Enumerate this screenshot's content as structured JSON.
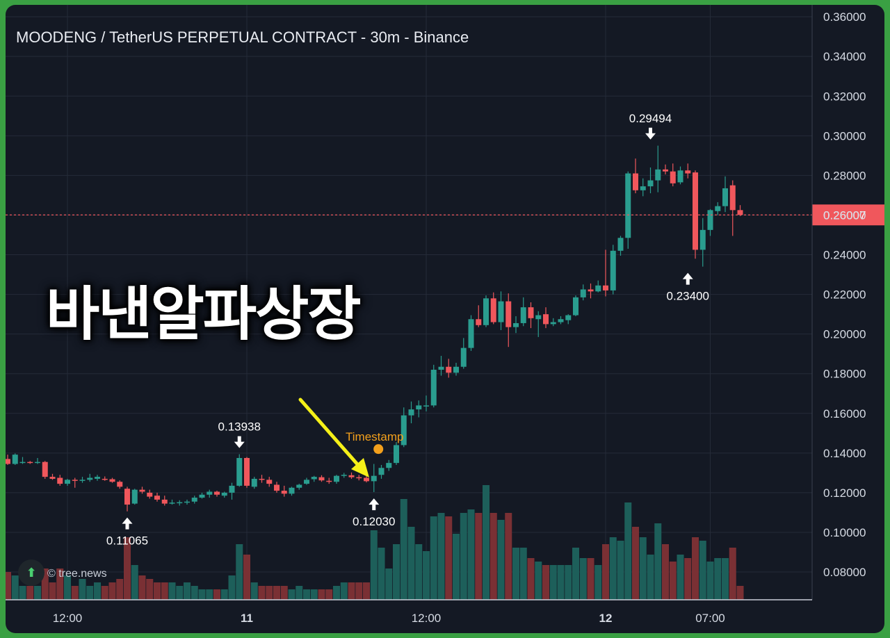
{
  "title": "MOODENG / TetherUS PERPETUAL CONTRACT - 30m - Binance",
  "overlay_text": "바낸알파상장",
  "watermark": "© tree.news",
  "watermark_icon": "double-chevron-up-icon",
  "annotation_label": "Timestamp",
  "colors": {
    "background": "#141924",
    "up": "#2a9d8f",
    "down": "#f0575c",
    "vol_up": "#1d5f5a",
    "vol_down": "#7a3034",
    "grid": "#252b38",
    "arrow": "#f5f018",
    "annotation": "#f3a01c"
  },
  "chart_data": {
    "type": "candlestick",
    "interval": "30m",
    "ylim": [
      0.066,
      0.366
    ],
    "y_ticks": [
      "0.36000",
      "0.34000",
      "0.32000",
      "0.30000",
      "0.28000",
      "0.26000",
      "0.24000",
      "0.22000",
      "0.20000",
      "0.18000",
      "0.16000",
      "0.14000",
      "0.12000",
      "0.10000",
      "0.08000"
    ],
    "x_ticks": [
      {
        "index": 8,
        "label": "12:00",
        "bold": false
      },
      {
        "index": 32,
        "label": "11",
        "bold": true
      },
      {
        "index": 56,
        "label": "12:00",
        "bold": false
      },
      {
        "index": 80,
        "label": "12",
        "bold": true
      },
      {
        "index": 94,
        "label": "07:00",
        "bold": false
      }
    ],
    "last_price": "0.26007",
    "last_price_value": 0.26007,
    "price_annotations": [
      {
        "label": "0.11065",
        "index": 16,
        "price": 0.11065,
        "type": "low"
      },
      {
        "label": "0.13938",
        "index": 31,
        "price": 0.13938,
        "type": "high"
      },
      {
        "label": "0.12030",
        "index": 49,
        "price": 0.1203,
        "type": "low"
      },
      {
        "label": "0.29494",
        "index": 86,
        "price": 0.29494,
        "type": "high"
      },
      {
        "label": "0.23400",
        "index": 91,
        "price": 0.234,
        "type": "low"
      }
    ],
    "timestamp_marker": {
      "index": 49.6,
      "price": 0.142
    },
    "candles": [
      [
        0.137,
        0.1392,
        0.134,
        0.1345,
        8
      ],
      [
        0.1345,
        0.1398,
        0.134,
        0.1392,
        7
      ],
      [
        0.135,
        0.138,
        0.1345,
        0.1355,
        4
      ],
      [
        0.1355,
        0.136,
        0.1345,
        0.135,
        4
      ],
      [
        0.135,
        0.1375,
        0.1345,
        0.1355,
        4
      ],
      [
        0.1355,
        0.136,
        0.127,
        0.128,
        9
      ],
      [
        0.128,
        0.1295,
        0.1265,
        0.127,
        5
      ],
      [
        0.1275,
        0.129,
        0.1235,
        0.1245,
        9
      ],
      [
        0.1245,
        0.127,
        0.1235,
        0.1265,
        7
      ],
      [
        0.1265,
        0.1275,
        0.1225,
        0.126,
        4
      ],
      [
        0.126,
        0.128,
        0.125,
        0.1265,
        6
      ],
      [
        0.1265,
        0.1295,
        0.1255,
        0.1275,
        4
      ],
      [
        0.127,
        0.129,
        0.126,
        0.128,
        5
      ],
      [
        0.127,
        0.1282,
        0.126,
        0.1268,
        4
      ],
      [
        0.1268,
        0.1275,
        0.125,
        0.1255,
        5
      ],
      [
        0.1255,
        0.1262,
        0.122,
        0.123,
        6
      ],
      [
        0.122,
        0.123,
        0.1106,
        0.114,
        18
      ],
      [
        0.1145,
        0.122,
        0.114,
        0.1215,
        10
      ],
      [
        0.1215,
        0.123,
        0.1195,
        0.1205,
        7
      ],
      [
        0.12,
        0.1215,
        0.117,
        0.118,
        6
      ],
      [
        0.1185,
        0.12,
        0.1155,
        0.1165,
        5
      ],
      [
        0.1165,
        0.1185,
        0.1135,
        0.1145,
        5
      ],
      [
        0.115,
        0.1165,
        0.114,
        0.115,
        5
      ],
      [
        0.1148,
        0.1162,
        0.1135,
        0.1152,
        4
      ],
      [
        0.115,
        0.1165,
        0.114,
        0.1155,
        5
      ],
      [
        0.1155,
        0.1185,
        0.1145,
        0.1175,
        4
      ],
      [
        0.1175,
        0.12,
        0.117,
        0.119,
        3
      ],
      [
        0.119,
        0.1215,
        0.1175,
        0.1205,
        3
      ],
      [
        0.1205,
        0.121,
        0.118,
        0.119,
        3
      ],
      [
        0.1185,
        0.1205,
        0.1175,
        0.12,
        3
      ],
      [
        0.12,
        0.125,
        0.1165,
        0.1235,
        7
      ],
      [
        0.1235,
        0.1394,
        0.123,
        0.1375,
        16
      ],
      [
        0.1375,
        0.138,
        0.1225,
        0.1235,
        13
      ],
      [
        0.123,
        0.128,
        0.122,
        0.127,
        5
      ],
      [
        0.127,
        0.129,
        0.125,
        0.1265,
        4
      ],
      [
        0.1265,
        0.128,
        0.123,
        0.1245,
        4
      ],
      [
        0.124,
        0.1255,
        0.12,
        0.121,
        4
      ],
      [
        0.121,
        0.1235,
        0.118,
        0.1195,
        4
      ],
      [
        0.1195,
        0.123,
        0.1185,
        0.1225,
        3
      ],
      [
        0.1225,
        0.1245,
        0.1215,
        0.124,
        4
      ],
      [
        0.1245,
        0.1275,
        0.124,
        0.1265,
        3
      ],
      [
        0.1268,
        0.1285,
        0.1255,
        0.128,
        3
      ],
      [
        0.1278,
        0.1288,
        0.1255,
        0.1262,
        3
      ],
      [
        0.126,
        0.1275,
        0.1245,
        0.1255,
        3
      ],
      [
        0.1255,
        0.129,
        0.1245,
        0.1285,
        4
      ],
      [
        0.1285,
        0.13,
        0.1275,
        0.129,
        5
      ],
      [
        0.1288,
        0.1302,
        0.127,
        0.1278,
        5
      ],
      [
        0.1278,
        0.129,
        0.1262,
        0.1275,
        5
      ],
      [
        0.1275,
        0.1285,
        0.1252,
        0.1258,
        5
      ],
      [
        0.1258,
        0.1345,
        0.1203,
        0.1285,
        20
      ],
      [
        0.129,
        0.134,
        0.127,
        0.1325,
        15
      ],
      [
        0.1325,
        0.1365,
        0.131,
        0.135,
        9
      ],
      [
        0.135,
        0.1455,
        0.134,
        0.144,
        16
      ],
      [
        0.144,
        0.163,
        0.143,
        0.159,
        29
      ],
      [
        0.159,
        0.166,
        0.155,
        0.162,
        21
      ],
      [
        0.162,
        0.1665,
        0.158,
        0.164,
        16
      ],
      [
        0.164,
        0.169,
        0.161,
        0.164,
        14
      ],
      [
        0.164,
        0.1845,
        0.163,
        0.182,
        24
      ],
      [
        0.182,
        0.189,
        0.179,
        0.1835,
        25
      ],
      [
        0.1835,
        0.1875,
        0.178,
        0.1805,
        24
      ],
      [
        0.1805,
        0.1855,
        0.179,
        0.1835,
        19
      ],
      [
        0.1835,
        0.198,
        0.1825,
        0.193,
        25
      ],
      [
        0.193,
        0.2095,
        0.1915,
        0.2075,
        26
      ],
      [
        0.2075,
        0.2145,
        0.2035,
        0.2045,
        25
      ],
      [
        0.2045,
        0.2195,
        0.2035,
        0.218,
        33
      ],
      [
        0.218,
        0.221,
        0.205,
        0.206,
        25
      ],
      [
        0.206,
        0.2215,
        0.202,
        0.2165,
        23
      ],
      [
        0.2165,
        0.2205,
        0.1935,
        0.2035,
        25
      ],
      [
        0.2035,
        0.209,
        0.2005,
        0.2055,
        15
      ],
      [
        0.2055,
        0.2185,
        0.204,
        0.2135,
        15
      ],
      [
        0.2135,
        0.216,
        0.203,
        0.208,
        12
      ],
      [
        0.2075,
        0.2115,
        0.1985,
        0.2095,
        11
      ],
      [
        0.21,
        0.2135,
        0.203,
        0.205,
        10
      ],
      [
        0.205,
        0.208,
        0.204,
        0.206,
        10
      ],
      [
        0.206,
        0.209,
        0.205,
        0.2075,
        10
      ],
      [
        0.207,
        0.21,
        0.205,
        0.2095,
        10
      ],
      [
        0.2095,
        0.2195,
        0.209,
        0.2185,
        15
      ],
      [
        0.2185,
        0.225,
        0.217,
        0.2225,
        12
      ],
      [
        0.2225,
        0.2255,
        0.218,
        0.2215,
        12
      ],
      [
        0.2215,
        0.227,
        0.221,
        0.2245,
        10
      ],
      [
        0.2245,
        0.2425,
        0.219,
        0.222,
        16
      ],
      [
        0.222,
        0.245,
        0.22,
        0.242,
        18
      ],
      [
        0.242,
        0.2495,
        0.2395,
        0.2485,
        17
      ],
      [
        0.2485,
        0.282,
        0.243,
        0.281,
        28
      ],
      [
        0.281,
        0.2885,
        0.271,
        0.2725,
        21
      ],
      [
        0.2725,
        0.2785,
        0.2695,
        0.2745,
        18
      ],
      [
        0.2745,
        0.284,
        0.271,
        0.2775,
        13
      ],
      [
        0.2775,
        0.295,
        0.2715,
        0.283,
        22
      ],
      [
        0.283,
        0.2855,
        0.2805,
        0.282,
        16
      ],
      [
        0.282,
        0.286,
        0.2745,
        0.276,
        11
      ],
      [
        0.2765,
        0.2845,
        0.2755,
        0.2825,
        13
      ],
      [
        0.2825,
        0.286,
        0.2785,
        0.281,
        12
      ],
      [
        0.2815,
        0.2825,
        0.238,
        0.2425,
        18
      ],
      [
        0.2425,
        0.2585,
        0.234,
        0.2525,
        17
      ],
      [
        0.2525,
        0.263,
        0.2495,
        0.2625,
        11
      ],
      [
        0.262,
        0.2665,
        0.26,
        0.2645,
        12
      ],
      [
        0.2645,
        0.2795,
        0.2615,
        0.2735,
        12
      ],
      [
        0.275,
        0.2775,
        0.2495,
        0.2625,
        15
      ],
      [
        0.2625,
        0.265,
        0.2595,
        0.2601,
        4
      ]
    ]
  }
}
